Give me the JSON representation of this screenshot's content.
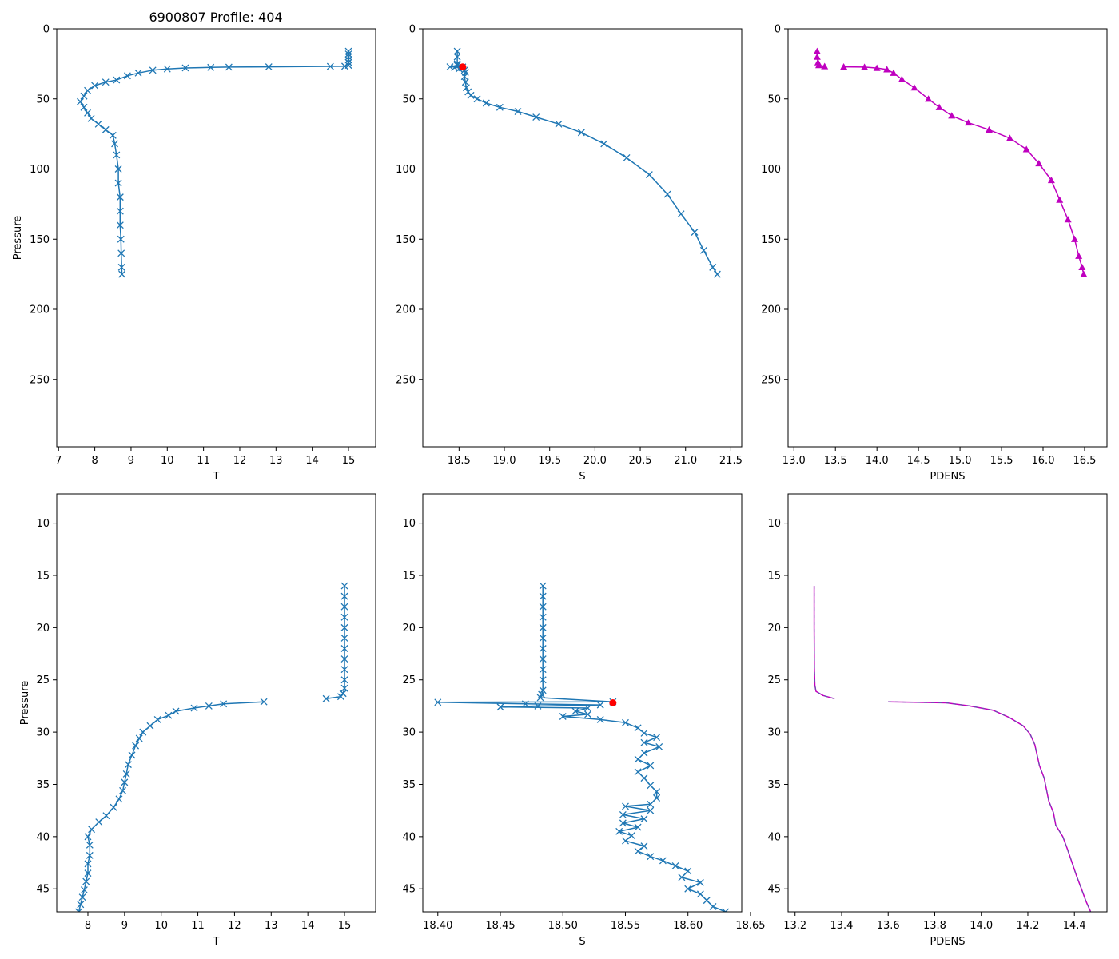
{
  "title": "6900807 Profile: 404",
  "colors": {
    "series": "#1f77b4",
    "density": "#bf00bf",
    "marker": "#ff0000",
    "density_dash": "#6a4fb0"
  },
  "chart_data": [
    {
      "id": "top-temperature",
      "type": "line",
      "xlabel": "T",
      "ylabel": "Pressure",
      "xlim": [
        6.95,
        15.75
      ],
      "ylim": [
        298,
        0
      ],
      "xticks": [
        7,
        8,
        9,
        10,
        11,
        12,
        13,
        14,
        15
      ],
      "yticks": [
        0,
        50,
        100,
        150,
        200,
        250
      ],
      "marker": "x",
      "series": [
        {
          "name": "T",
          "points": [
            [
              15.0,
              16
            ],
            [
              15.0,
              18
            ],
            [
              15.0,
              20
            ],
            [
              15.0,
              22
            ],
            [
              15.0,
              24
            ],
            [
              15.0,
              26
            ],
            [
              14.9,
              26.7
            ],
            [
              14.5,
              26.8
            ],
            [
              12.8,
              27.1
            ],
            [
              11.7,
              27.3
            ],
            [
              11.2,
              27.5
            ],
            [
              10.5,
              27.9
            ],
            [
              10.0,
              28.6
            ],
            [
              9.6,
              29.5
            ],
            [
              9.2,
              31.5
            ],
            [
              8.9,
              33.5
            ],
            [
              8.6,
              36.5
            ],
            [
              8.3,
              38
            ],
            [
              8.0,
              40.5
            ],
            [
              7.8,
              44
            ],
            [
              7.7,
              48
            ],
            [
              7.6,
              52
            ],
            [
              7.7,
              56
            ],
            [
              7.8,
              60
            ],
            [
              7.9,
              64
            ],
            [
              8.1,
              68
            ],
            [
              8.3,
              72
            ],
            [
              8.5,
              76
            ],
            [
              8.55,
              82
            ],
            [
              8.6,
              90
            ],
            [
              8.65,
              100
            ],
            [
              8.65,
              110
            ],
            [
              8.7,
              120
            ],
            [
              8.7,
              130
            ],
            [
              8.7,
              140
            ],
            [
              8.72,
              150
            ],
            [
              8.73,
              160
            ],
            [
              8.74,
              170
            ],
            [
              8.75,
              175
            ]
          ]
        }
      ]
    },
    {
      "id": "top-salinity",
      "type": "line",
      "xlabel": "S",
      "ylabel": "",
      "xlim": [
        18.1,
        21.62
      ],
      "ylim": [
        298,
        0
      ],
      "xticks": [
        "18.5",
        "19.0",
        "19.5",
        "20.0",
        "20.5",
        "21.0",
        "21.5"
      ],
      "yticks": [
        0,
        50,
        100,
        150,
        200,
        250
      ],
      "marker": "x",
      "series": [
        {
          "name": "S",
          "points": [
            [
              18.48,
              16
            ],
            [
              18.48,
              20
            ],
            [
              18.48,
              25
            ],
            [
              18.48,
              26
            ],
            [
              18.4,
              27.1
            ],
            [
              18.54,
              27.2
            ],
            [
              18.45,
              27.6
            ],
            [
              18.53,
              27.8
            ],
            [
              18.5,
              28.5
            ],
            [
              18.56,
              29.5
            ],
            [
              18.57,
              31
            ],
            [
              18.56,
              34
            ],
            [
              18.57,
              38
            ],
            [
              18.58,
              42
            ],
            [
              18.6,
              45
            ],
            [
              18.63,
              47.5
            ],
            [
              18.7,
              50
            ],
            [
              18.8,
              53
            ],
            [
              18.95,
              56
            ],
            [
              19.15,
              59
            ],
            [
              19.35,
              63
            ],
            [
              19.6,
              68
            ],
            [
              19.85,
              74
            ],
            [
              20.1,
              82
            ],
            [
              20.35,
              92
            ],
            [
              20.6,
              104
            ],
            [
              20.8,
              118
            ],
            [
              20.95,
              132
            ],
            [
              21.1,
              145
            ],
            [
              21.2,
              158
            ],
            [
              21.3,
              170
            ],
            [
              21.35,
              175
            ]
          ]
        }
      ],
      "highlight": {
        "label": "first point",
        "x": 18.54,
        "y": 27.2
      }
    },
    {
      "id": "top-density",
      "type": "line",
      "xlabel": "PDENS",
      "ylabel": "",
      "xlim": [
        12.93,
        16.77
      ],
      "ylim": [
        298,
        0
      ],
      "xticks": [
        "13.0",
        "13.5",
        "14.0",
        "14.5",
        "15.0",
        "15.5",
        "16.0",
        "16.5"
      ],
      "yticks": [
        0,
        50,
        100,
        150,
        200,
        250
      ],
      "marker": "^",
      "series": [
        {
          "name": "PDENS upper",
          "points": [
            [
              13.28,
              16
            ],
            [
              13.28,
              20
            ],
            [
              13.29,
              24
            ],
            [
              13.3,
              26
            ],
            [
              13.37,
              26.8
            ]
          ]
        },
        {
          "name": "PDENS",
          "points": [
            [
              13.6,
              27.1
            ],
            [
              13.85,
              27.3
            ],
            [
              14.0,
              28
            ],
            [
              14.12,
              29
            ],
            [
              14.2,
              31.5
            ],
            [
              14.3,
              36
            ],
            [
              14.45,
              42
            ],
            [
              14.62,
              50
            ],
            [
              14.75,
              56
            ],
            [
              14.9,
              62
            ],
            [
              15.1,
              67
            ],
            [
              15.35,
              72
            ],
            [
              15.6,
              78
            ],
            [
              15.8,
              86
            ],
            [
              15.95,
              96
            ],
            [
              16.1,
              108
            ],
            [
              16.2,
              122
            ],
            [
              16.3,
              136
            ],
            [
              16.38,
              150
            ],
            [
              16.43,
              162
            ],
            [
              16.47,
              170
            ],
            [
              16.49,
              175
            ]
          ]
        }
      ]
    },
    {
      "id": "bottom-temperature",
      "type": "line",
      "xlabel": "T",
      "ylabel": "Pressure",
      "xlim": [
        7.15,
        15.85
      ],
      "ylim": [
        47.2,
        7.2
      ],
      "xticks": [
        8,
        9,
        10,
        11,
        12,
        13,
        14,
        15
      ],
      "yticks": [
        10,
        15,
        20,
        25,
        30,
        35,
        40,
        45
      ],
      "marker": "x",
      "series": [
        {
          "name": "T upper",
          "points": [
            [
              15.0,
              16
            ],
            [
              15.0,
              17
            ],
            [
              15.0,
              18
            ],
            [
              15.0,
              19
            ],
            [
              15.0,
              20
            ],
            [
              15.0,
              21
            ],
            [
              15.0,
              22
            ],
            [
              15.0,
              23
            ],
            [
              15.0,
              24
            ],
            [
              15.0,
              25
            ],
            [
              15.0,
              25.8
            ],
            [
              14.96,
              26.3
            ],
            [
              14.9,
              26.6
            ],
            [
              14.5,
              26.8
            ]
          ]
        },
        {
          "name": "T",
          "points": [
            [
              12.8,
              27.1
            ],
            [
              11.7,
              27.3
            ],
            [
              11.3,
              27.5
            ],
            [
              10.9,
              27.7
            ],
            [
              10.4,
              28.0
            ],
            [
              10.2,
              28.4
            ],
            [
              9.9,
              28.8
            ],
            [
              9.7,
              29.4
            ],
            [
              9.5,
              30.0
            ],
            [
              9.4,
              30.6
            ],
            [
              9.3,
              31.3
            ],
            [
              9.2,
              32.2
            ],
            [
              9.1,
              33.1
            ],
            [
              9.05,
              34
            ],
            [
              9.0,
              34.8
            ],
            [
              8.95,
              35.6
            ],
            [
              8.85,
              36.4
            ],
            [
              8.7,
              37.2
            ],
            [
              8.5,
              38.0
            ],
            [
              8.3,
              38.6
            ],
            [
              8.1,
              39.3
            ],
            [
              8.0,
              40.0
            ],
            [
              8.05,
              40.8
            ],
            [
              8.05,
              41.8
            ],
            [
              8.0,
              42.6
            ],
            [
              8.0,
              43.5
            ],
            [
              7.95,
              44.3
            ],
            [
              7.9,
              45.1
            ],
            [
              7.85,
              45.8
            ],
            [
              7.8,
              46.5
            ],
            [
              7.75,
              47.2
            ]
          ]
        }
      ]
    },
    {
      "id": "bottom-salinity",
      "type": "line",
      "xlabel": "S",
      "ylabel": "",
      "xlim": [
        18.388,
        18.643
      ],
      "ylim": [
        47.2,
        7.2
      ],
      "xticks": [
        "18.40",
        "18.45",
        "18.50",
        "18.55",
        "18.60",
        "18.65"
      ],
      "yticks": [
        10,
        15,
        20,
        25,
        30,
        35,
        40,
        45
      ],
      "marker": "x",
      "series": [
        {
          "name": "S",
          "points": [
            [
              18.484,
              16
            ],
            [
              18.484,
              17
            ],
            [
              18.484,
              18
            ],
            [
              18.484,
              19
            ],
            [
              18.484,
              20
            ],
            [
              18.484,
              21
            ],
            [
              18.484,
              22
            ],
            [
              18.484,
              23
            ],
            [
              18.484,
              24
            ],
            [
              18.484,
              25
            ],
            [
              18.484,
              26
            ],
            [
              18.483,
              26.4
            ],
            [
              18.482,
              26.7
            ],
            [
              18.54,
              27.1
            ],
            [
              18.4,
              27.15
            ],
            [
              18.47,
              27.3
            ],
            [
              18.53,
              27.4
            ],
            [
              18.48,
              27.5
            ],
            [
              18.45,
              27.6
            ],
            [
              18.52,
              27.7
            ],
            [
              18.51,
              28.0
            ],
            [
              18.52,
              28.3
            ],
            [
              18.5,
              28.5
            ],
            [
              18.53,
              28.8
            ],
            [
              18.55,
              29.1
            ],
            [
              18.56,
              29.6
            ],
            [
              18.565,
              30.1
            ],
            [
              18.575,
              30.5
            ],
            [
              18.565,
              31.0
            ],
            [
              18.577,
              31.4
            ],
            [
              18.565,
              32
            ],
            [
              18.56,
              32.6
            ],
            [
              18.57,
              33.2
            ],
            [
              18.56,
              33.8
            ],
            [
              18.565,
              34.4
            ],
            [
              18.57,
              35.1
            ],
            [
              18.575,
              35.7
            ],
            [
              18.575,
              36.3
            ],
            [
              18.57,
              36.9
            ],
            [
              18.55,
              37.1
            ],
            [
              18.57,
              37.5
            ],
            [
              18.548,
              37.9
            ],
            [
              18.565,
              38.3
            ],
            [
              18.548,
              38.7
            ],
            [
              18.56,
              39.1
            ],
            [
              18.545,
              39.5
            ],
            [
              18.555,
              39.9
            ],
            [
              18.55,
              40.4
            ],
            [
              18.565,
              40.9
            ],
            [
              18.56,
              41.4
            ],
            [
              18.57,
              41.9
            ],
            [
              18.58,
              42.3
            ],
            [
              18.59,
              42.8
            ],
            [
              18.6,
              43.3
            ],
            [
              18.595,
              43.9
            ],
            [
              18.61,
              44.4
            ],
            [
              18.6,
              45.0
            ],
            [
              18.61,
              45.5
            ],
            [
              18.615,
              46.1
            ],
            [
              18.62,
              46.7
            ],
            [
              18.63,
              47.2
            ]
          ]
        }
      ],
      "highlight": {
        "label": "first point",
        "x": 18.54,
        "y": 27.2
      }
    },
    {
      "id": "bottom-density",
      "type": "line",
      "xlabel": "PDENS",
      "ylabel": "",
      "xlim": [
        13.17,
        14.54
      ],
      "ylim": [
        47.2,
        7.2
      ],
      "xticks": [
        "13.2",
        "13.4",
        "13.6",
        "13.8",
        "14.0",
        "14.2",
        "14.4"
      ],
      "yticks": [
        10,
        15,
        20,
        25,
        30,
        35,
        40,
        45
      ],
      "marker": "",
      "series": [
        {
          "name": "PDENS upper",
          "points": [
            [
              13.282,
              16
            ],
            [
              13.282,
              20
            ],
            [
              13.283,
              24
            ],
            [
              13.285,
              25.5
            ],
            [
              13.29,
              26.1
            ],
            [
              13.32,
              26.5
            ],
            [
              13.37,
              26.8
            ]
          ]
        },
        {
          "name": "PDENS",
          "points": [
            [
              13.6,
              27.1
            ],
            [
              13.85,
              27.2
            ],
            [
              13.95,
              27.5
            ],
            [
              14.05,
              27.9
            ],
            [
              14.12,
              28.6
            ],
            [
              14.18,
              29.4
            ],
            [
              14.21,
              30.2
            ],
            [
              14.23,
              31.2
            ],
            [
              14.24,
              32.2
            ],
            [
              14.25,
              33.2
            ],
            [
              14.27,
              34.4
            ],
            [
              14.28,
              35.5
            ],
            [
              14.29,
              36.6
            ],
            [
              14.31,
              37.7
            ],
            [
              14.32,
              38.9
            ],
            [
              14.35,
              40.0
            ],
            [
              14.37,
              41.2
            ],
            [
              14.39,
              42.5
            ],
            [
              14.41,
              43.8
            ],
            [
              14.43,
              45.0
            ],
            [
              14.45,
              46.2
            ],
            [
              14.47,
              47.2
            ]
          ]
        }
      ]
    }
  ]
}
